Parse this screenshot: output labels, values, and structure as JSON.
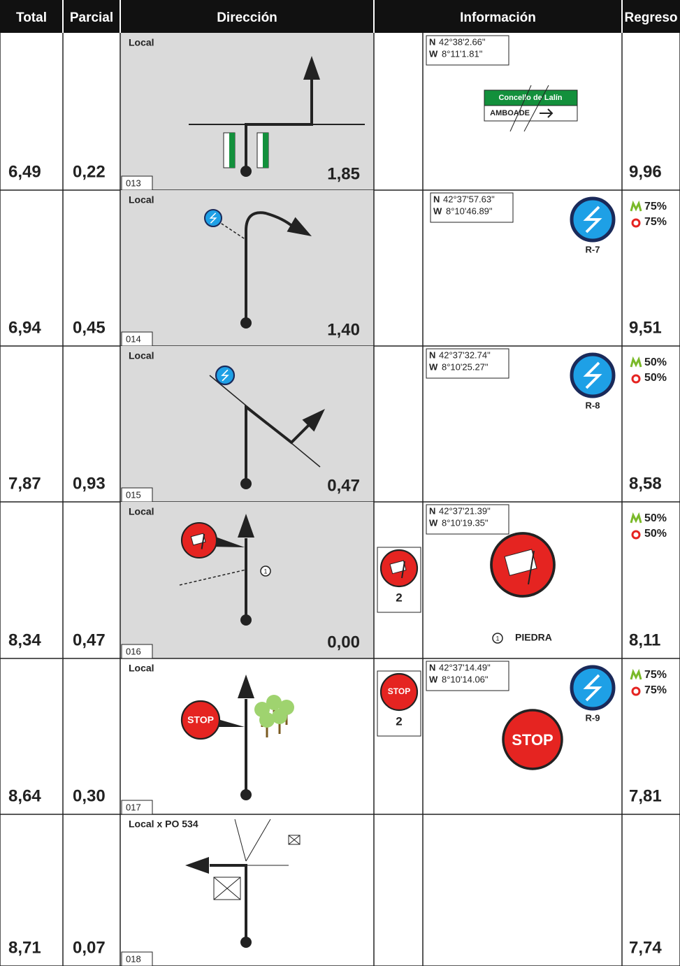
{
  "header": {
    "columns": [
      "Total",
      "Parcial",
      "Dirección",
      "Información",
      "Regreso"
    ]
  },
  "coord_labels": {
    "n": "N",
    "w": "W"
  },
  "rows": [
    {
      "total": "6,49",
      "parcial": "0,22",
      "road": "Local",
      "id": "013",
      "distance": "1,85",
      "regreso": "9,96",
      "lat": "42°38'2.66\"",
      "lon": "8°11'1.81\"",
      "sign": {
        "line1": "Concello de Lalín",
        "line2": "AMBOADE"
      }
    },
    {
      "total": "6,94",
      "parcial": "0,45",
      "road": "Local",
      "id": "014",
      "distance": "1,40",
      "regreso": "9,51",
      "lat": "42°37'57.63\"",
      "lon": "8°10'46.89\"",
      "signal": "R-7",
      "coverage": [
        "75%",
        "75%"
      ]
    },
    {
      "total": "7,87",
      "parcial": "0,93",
      "road": "Local",
      "id": "015",
      "distance": "0,47",
      "regreso": "8,58",
      "lat": "42°37'32.74\"",
      "lon": "8°10'25.27\"",
      "signal": "R-8",
      "coverage": [
        "50%",
        "50%"
      ]
    },
    {
      "total": "8,34",
      "parcial": "0,47",
      "road": "Local",
      "id": "016",
      "distance": "0,00",
      "regreso": "8,11",
      "lat": "42°37'21.39\"",
      "lon": "8°10'19.35\"",
      "coverage": [
        "50%",
        "50%"
      ],
      "box_number": "2",
      "marker": "1",
      "note": "PIEDRA"
    },
    {
      "total": "8,64",
      "parcial": "0,30",
      "road": "Local",
      "id": "017",
      "regreso": "7,81",
      "lat": "42°37'14.49\"",
      "lon": "8°10'14.06\"",
      "signal": "R-9",
      "coverage": [
        "75%",
        "75%"
      ],
      "box_number": "2",
      "stop": "STOP"
    },
    {
      "total": "8,71",
      "parcial": "0,07",
      "road": "Local x PO 534",
      "id": "018",
      "regreso": "7,74"
    }
  ]
}
